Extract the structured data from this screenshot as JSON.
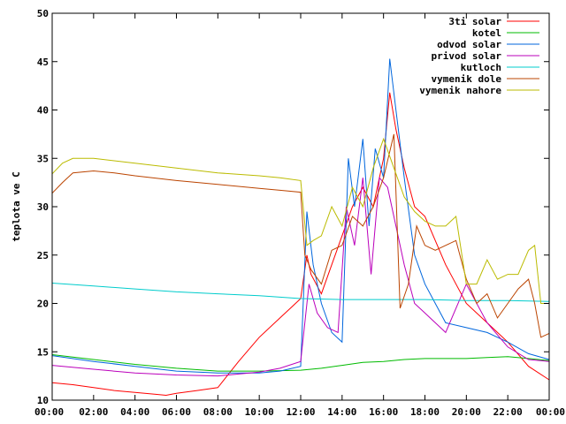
{
  "chart_data": {
    "type": "line",
    "title": "",
    "xlabel": "",
    "ylabel": "teplota ve C",
    "xlim": [
      0,
      24
    ],
    "ylim": [
      10,
      50
    ],
    "x_ticks": [
      0,
      2,
      4,
      6,
      8,
      10,
      12,
      14,
      16,
      18,
      20,
      22,
      24
    ],
    "x_tick_labels": [
      "00:00",
      "02:00",
      "04:00",
      "06:00",
      "08:00",
      "10:00",
      "12:00",
      "14:00",
      "16:00",
      "18:00",
      "20:00",
      "22:00",
      "00:00"
    ],
    "y_ticks": [
      10,
      15,
      20,
      25,
      30,
      35,
      40,
      45,
      50
    ],
    "y_tick_labels": [
      "10",
      "15",
      "20",
      "25",
      "30",
      "35",
      "40",
      "45",
      "50"
    ],
    "grid": false,
    "legend_position": "top-right",
    "series": [
      {
        "name": "3ti solar",
        "color": "#ff0000",
        "x": [
          0,
          1,
          2,
          3,
          4,
          5,
          5.5,
          6,
          7,
          8,
          9,
          10,
          11,
          11.5,
          12,
          12.3,
          12.5,
          13,
          13.5,
          14,
          14.5,
          15,
          15.5,
          16,
          16.3,
          16.6,
          17,
          17.5,
          18,
          19,
          20,
          21,
          22,
          23,
          24
        ],
        "values": [
          11.8,
          11.6,
          11.3,
          11.0,
          10.8,
          10.6,
          10.5,
          10.7,
          11.0,
          11.3,
          14.0,
          16.5,
          18.5,
          19.5,
          20.5,
          25.0,
          23.0,
          21.0,
          24.0,
          27.0,
          30.0,
          32.0,
          30.0,
          35.0,
          41.8,
          38.0,
          34.0,
          30.0,
          29.0,
          24.0,
          20.0,
          18.0,
          16.0,
          13.5,
          12.1
        ]
      },
      {
        "name": "kotel",
        "color": "#00bb00",
        "x": [
          0,
          2,
          4,
          6,
          8,
          10,
          12,
          13,
          14,
          15,
          16,
          17,
          18,
          19,
          20,
          21,
          22,
          23,
          24
        ],
        "values": [
          14.7,
          14.2,
          13.7,
          13.3,
          13.0,
          13.0,
          13.1,
          13.3,
          13.6,
          13.9,
          14.0,
          14.2,
          14.3,
          14.3,
          14.3,
          14.4,
          14.5,
          14.3,
          14.1
        ]
      },
      {
        "name": "odvod solar",
        "color": "#0066dd",
        "x": [
          0,
          2,
          4,
          6,
          8,
          10,
          11,
          12,
          12.3,
          12.6,
          13,
          13.5,
          14,
          14.3,
          14.6,
          15,
          15.3,
          15.6,
          16,
          16.3,
          16.6,
          17,
          17.5,
          18,
          19,
          20,
          21,
          22,
          23,
          24
        ],
        "values": [
          14.6,
          14.0,
          13.5,
          13.0,
          12.8,
          12.8,
          13.0,
          13.5,
          29.5,
          24.0,
          20.0,
          17.0,
          16.0,
          35.0,
          30.0,
          37.0,
          28.0,
          36.0,
          33.0,
          45.3,
          40.0,
          33.0,
          25.0,
          22.0,
          18.0,
          17.5,
          17.0,
          16.0,
          14.8,
          14.2
        ]
      },
      {
        "name": "privod solar",
        "color": "#bb00bb",
        "x": [
          0,
          2,
          4,
          6,
          8,
          10,
          11,
          12,
          12.4,
          12.8,
          13.3,
          13.8,
          14.2,
          14.6,
          15,
          15.4,
          15.8,
          16.2,
          16.6,
          17,
          17.5,
          18,
          19,
          20,
          21,
          22,
          23,
          24
        ],
        "values": [
          13.6,
          13.2,
          12.8,
          12.6,
          12.5,
          12.9,
          13.3,
          14.0,
          22.0,
          19.0,
          17.5,
          17.0,
          30.0,
          26.0,
          33.0,
          23.0,
          33.0,
          32.0,
          28.0,
          24.0,
          20.0,
          19.0,
          17.0,
          22.0,
          18.0,
          15.5,
          14.2,
          14.0
        ]
      },
      {
        "name": "kutloch",
        "color": "#00cccc",
        "x": [
          0,
          2,
          4,
          6,
          8,
          10,
          12,
          14,
          16,
          18,
          20,
          22,
          24
        ],
        "values": [
          22.1,
          21.8,
          21.5,
          21.2,
          21.0,
          20.8,
          20.5,
          20.4,
          20.4,
          20.4,
          20.3,
          20.3,
          20.2
        ]
      },
      {
        "name": "vymenik dole",
        "color": "#bb4400",
        "x": [
          0,
          0.5,
          1,
          2,
          3,
          4,
          6,
          8,
          10,
          11,
          12,
          12.2,
          12.5,
          13,
          13.5,
          14,
          14.5,
          15,
          15.5,
          16,
          16.5,
          16.8,
          17.2,
          17.6,
          18,
          18.5,
          19,
          19.5,
          20,
          20.5,
          21,
          21.5,
          22,
          22.5,
          23,
          23.3,
          23.6,
          24
        ],
        "values": [
          31.4,
          32.5,
          33.5,
          33.7,
          33.5,
          33.2,
          32.7,
          32.3,
          31.9,
          31.7,
          31.5,
          25.0,
          23.5,
          22.0,
          25.5,
          26.0,
          29.0,
          28.0,
          30.0,
          33.0,
          37.5,
          19.5,
          22.0,
          28.0,
          26.0,
          25.5,
          26.0,
          26.5,
          22.5,
          20.0,
          21.0,
          18.5,
          20.0,
          21.5,
          22.5,
          20.0,
          16.5,
          16.9
        ]
      },
      {
        "name": "vymenik nahore",
        "color": "#bbbb00",
        "x": [
          0,
          0.5,
          1,
          2,
          4,
          6,
          8,
          10,
          11,
          12,
          12.3,
          12.6,
          13,
          13.5,
          14,
          14.5,
          15,
          15.5,
          16,
          16.5,
          17,
          17.5,
          18,
          18.5,
          19,
          19.5,
          20,
          20.5,
          21,
          21.5,
          22,
          22.5,
          23,
          23.3,
          23.6,
          24
        ],
        "values": [
          33.4,
          34.5,
          35.0,
          35.0,
          34.5,
          34.0,
          33.5,
          33.2,
          33.0,
          32.7,
          26.0,
          26.5,
          27.0,
          30.0,
          28.0,
          32.0,
          30.0,
          34.0,
          37.0,
          34.0,
          31.0,
          29.5,
          28.5,
          28.0,
          28.0,
          29.0,
          22.0,
          22.0,
          24.5,
          22.5,
          23.0,
          23.0,
          25.5,
          26.0,
          20.0,
          20.0
        ]
      }
    ]
  }
}
